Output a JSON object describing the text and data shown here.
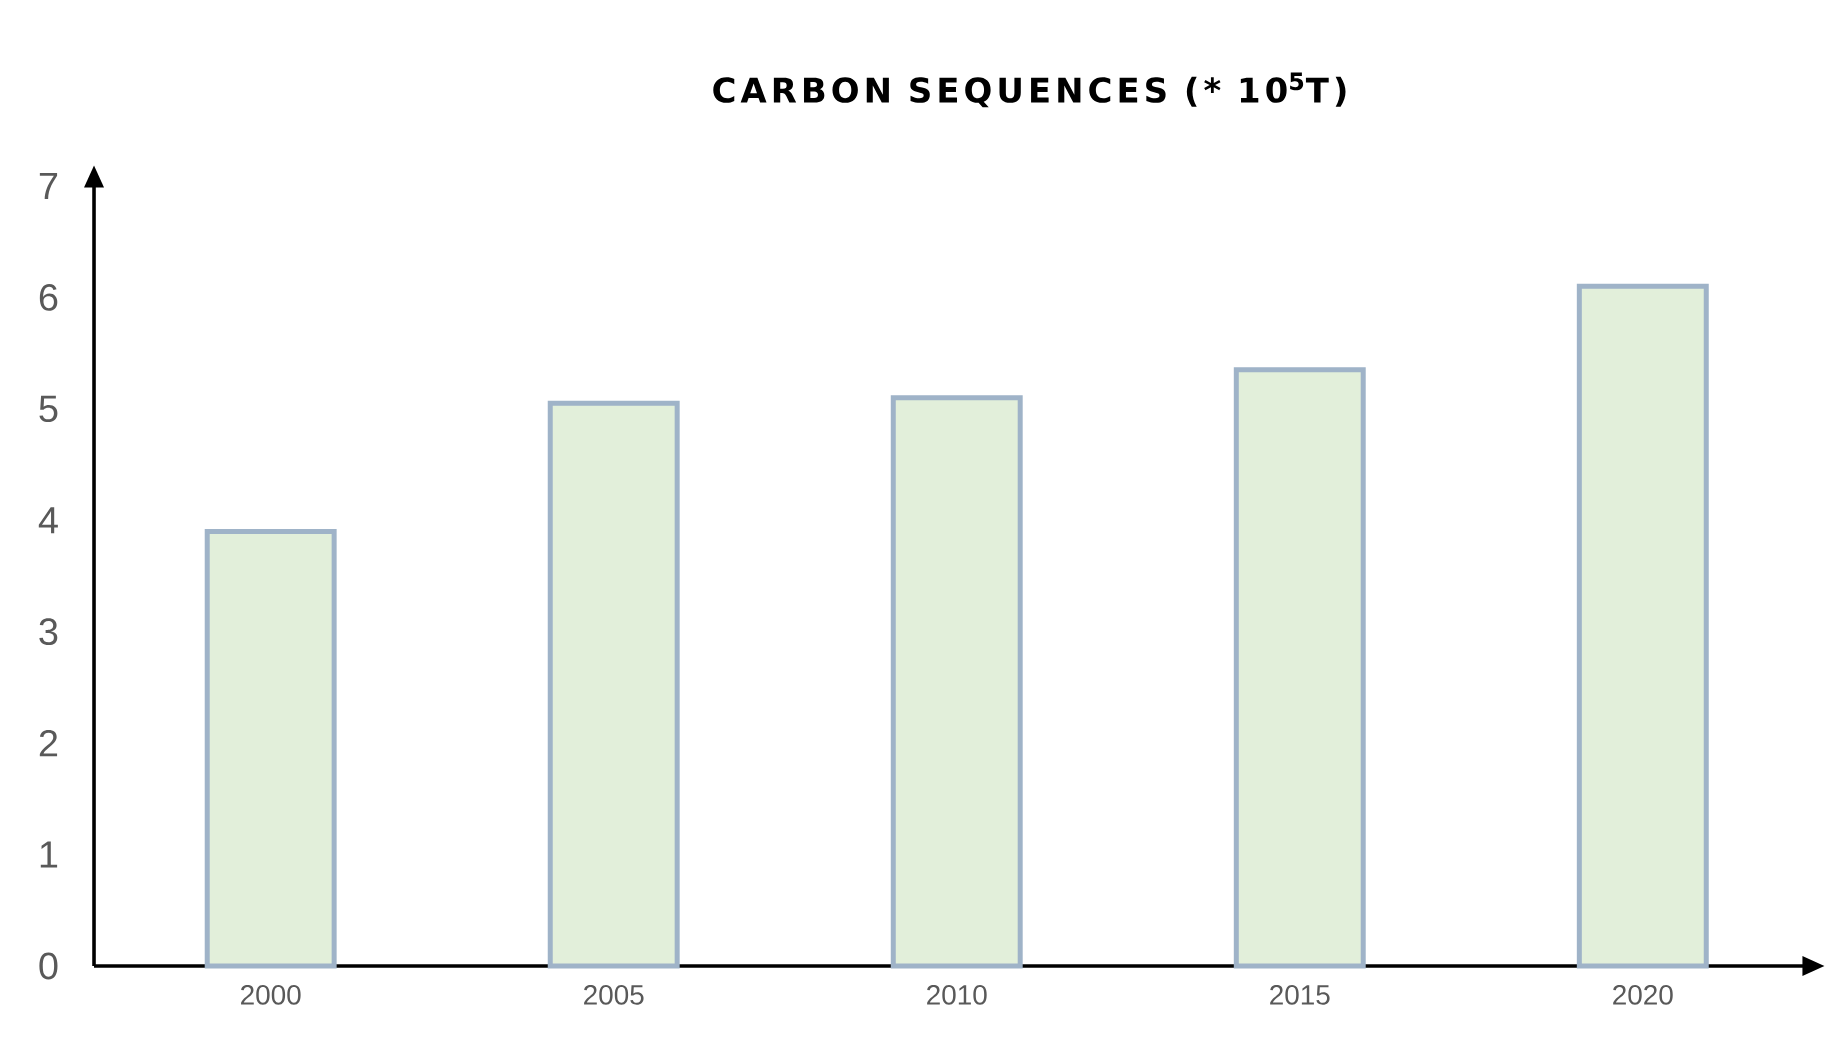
{
  "chart_data": {
    "type": "bar",
    "title": "CARBON SEQUENCES (* 10$^{5}$T)",
    "categories": [
      "2000",
      "2005",
      "2010",
      "2015",
      "2020"
    ],
    "values": [
      3.9,
      5.05,
      5.1,
      5.35,
      6.1
    ],
    "color": "#e2efda",
    "ylim": [
      0,
      7
    ],
    "yticks": [
      0,
      1,
      2,
      3,
      4,
      5,
      6,
      7
    ],
    "grid": false
  }
}
